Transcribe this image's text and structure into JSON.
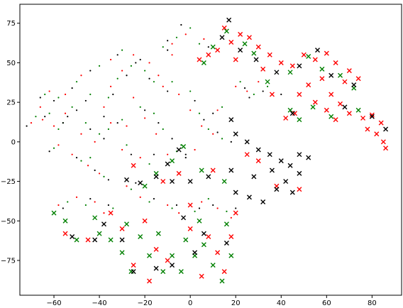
{
  "chart_data": {
    "type": "scatter",
    "title": "",
    "xlabel": "",
    "ylabel": "",
    "xlim": [
      -75,
      93
    ],
    "ylim": [
      -97,
      87
    ],
    "xticks": [
      -60,
      -40,
      -20,
      0,
      20,
      40,
      60,
      80
    ],
    "yticks": [
      -75,
      -50,
      -25,
      0,
      25,
      50,
      75
    ],
    "grid": false,
    "legend": "none",
    "colors": {
      "red": "#ff0000",
      "green": "#008000",
      "black": "#000000"
    },
    "marker_kinds": {
      "dot": "small dot markers (left/center region)",
      "cross": "x markers (right and lower clusters)"
    },
    "series": [
      {
        "color": "red",
        "marker": "cross",
        "points": [
          [
            15,
            72
          ],
          [
            22,
            68
          ],
          [
            18,
            63
          ],
          [
            26,
            66
          ],
          [
            30,
            60
          ],
          [
            35,
            55
          ],
          [
            12,
            58
          ],
          [
            8,
            55
          ],
          [
            4,
            52
          ],
          [
            20,
            52
          ],
          [
            32,
            46
          ],
          [
            40,
            50
          ],
          [
            45,
            48
          ],
          [
            50,
            55
          ],
          [
            55,
            52
          ],
          [
            60,
            56
          ],
          [
            64,
            50
          ],
          [
            70,
            45
          ],
          [
            74,
            40
          ],
          [
            68,
            38
          ],
          [
            58,
            40
          ],
          [
            52,
            36
          ],
          [
            48,
            30
          ],
          [
            55,
            25
          ],
          [
            60,
            20
          ],
          [
            64,
            14
          ],
          [
            70,
            18
          ],
          [
            76,
            15
          ],
          [
            80,
            17
          ],
          [
            84,
            12
          ],
          [
            82,
            5
          ],
          [
            85,
            0
          ],
          [
            86,
            -4
          ],
          [
            78,
            8
          ],
          [
            46,
            18
          ],
          [
            42,
            15
          ],
          [
            62,
            30
          ],
          [
            66,
            24
          ],
          [
            36,
            30
          ],
          [
            25,
            -8
          ],
          [
            30,
            -12
          ],
          [
            10,
            -18
          ],
          [
            -5,
            -20
          ],
          [
            -12,
            -25
          ],
          [
            -25,
            -15
          ],
          [
            38,
            -28
          ],
          [
            48,
            -30
          ],
          [
            -55,
            -58
          ],
          [
            -45,
            -62
          ],
          [
            -30,
            -55
          ],
          [
            -20,
            -50
          ],
          [
            -15,
            -68
          ],
          [
            -10,
            -75
          ],
          [
            -25,
            -78
          ],
          [
            -18,
            -88
          ],
          [
            0,
            -55
          ],
          [
            8,
            -60
          ],
          [
            12,
            -70
          ],
          [
            15,
            -82
          ],
          [
            5,
            -85
          ],
          [
            18,
            -60
          ],
          [
            -35,
            -45
          ],
          [
            0,
            -40
          ],
          [
            20,
            -45
          ]
        ]
      },
      {
        "color": "green",
        "marker": "cross",
        "points": [
          [
            10,
            60
          ],
          [
            16,
            70
          ],
          [
            24,
            62
          ],
          [
            6,
            50
          ],
          [
            28,
            56
          ],
          [
            44,
            44
          ],
          [
            52,
            54
          ],
          [
            58,
            46
          ],
          [
            66,
            42
          ],
          [
            72,
            34
          ],
          [
            54,
            22
          ],
          [
            62,
            16
          ],
          [
            74,
            20
          ],
          [
            44,
            20
          ],
          [
            48,
            14
          ],
          [
            34,
            38
          ],
          [
            -3,
            -3
          ],
          [
            -8,
            -12
          ],
          [
            -15,
            -20
          ],
          [
            -20,
            -28
          ],
          [
            5,
            -18
          ],
          [
            15,
            -25
          ],
          [
            -55,
            -50
          ],
          [
            -50,
            -62
          ],
          [
            -40,
            -58
          ],
          [
            -35,
            -62
          ],
          [
            -28,
            -52
          ],
          [
            -22,
            -60
          ],
          [
            -18,
            -72
          ],
          [
            -26,
            -82
          ],
          [
            -12,
            -82
          ],
          [
            -8,
            -72
          ],
          [
            -2,
            -62
          ],
          [
            4,
            -50
          ],
          [
            6,
            -65
          ],
          [
            10,
            -78
          ],
          [
            14,
            -88
          ],
          [
            18,
            -72
          ],
          [
            16,
            -52
          ],
          [
            -4,
            -82
          ],
          [
            -30,
            -70
          ],
          [
            2,
            -72
          ],
          [
            -14,
            -58
          ],
          [
            -42,
            -48
          ],
          [
            -60,
            -45
          ]
        ]
      },
      {
        "color": "black",
        "marker": "cross",
        "points": [
          [
            17,
            77
          ],
          [
            14,
            66
          ],
          [
            22,
            58
          ],
          [
            29,
            52
          ],
          [
            38,
            44
          ],
          [
            48,
            48
          ],
          [
            56,
            58
          ],
          [
            62,
            42
          ],
          [
            72,
            36
          ],
          [
            80,
            16
          ],
          [
            86,
            8
          ],
          [
            68,
            22
          ],
          [
            45,
            18
          ],
          [
            18,
            14
          ],
          [
            20,
            5
          ],
          [
            25,
            0
          ],
          [
            30,
            -5
          ],
          [
            35,
            -8
          ],
          [
            40,
            -12
          ],
          [
            44,
            -15
          ],
          [
            48,
            -20
          ],
          [
            42,
            -25
          ],
          [
            45,
            -32
          ],
          [
            38,
            -30
          ],
          [
            32,
            -38
          ],
          [
            26,
            -35
          ],
          [
            20,
            -32
          ],
          [
            28,
            -22
          ],
          [
            36,
            -18
          ],
          [
            18,
            -18
          ],
          [
            8,
            -22
          ],
          [
            0,
            -25
          ],
          [
            -8,
            -25
          ],
          [
            -15,
            -22
          ],
          [
            -22,
            -26
          ],
          [
            -28,
            -24
          ],
          [
            -5,
            -5
          ],
          [
            -10,
            -14
          ],
          [
            -25,
            -82
          ],
          [
            -15,
            -80
          ],
          [
            -8,
            -78
          ],
          [
            2,
            -70
          ],
          [
            6,
            -58
          ],
          [
            -30,
            -62
          ],
          [
            -42,
            -62
          ],
          [
            -52,
            -60
          ],
          [
            -38,
            -52
          ],
          [
            -3,
            -48
          ],
          [
            16,
            -64
          ],
          [
            48,
            -8
          ],
          [
            52,
            -10
          ]
        ]
      },
      {
        "color": "red",
        "marker": "dot",
        "points": [
          [
            -65,
            14
          ],
          [
            -60,
            10
          ],
          [
            -55,
            18
          ],
          [
            -48,
            5
          ],
          [
            -42,
            0
          ],
          [
            -38,
            22
          ],
          [
            -35,
            35
          ],
          [
            -30,
            45
          ],
          [
            -25,
            28
          ],
          [
            -20,
            15
          ],
          [
            -15,
            5
          ],
          [
            -10,
            -8
          ],
          [
            -22,
            -10
          ],
          [
            -30,
            -5
          ],
          [
            -45,
            -15
          ],
          [
            -40,
            -20
          ],
          [
            -12,
            35
          ],
          [
            -5,
            30
          ],
          [
            0,
            20
          ],
          [
            5,
            10
          ],
          [
            10,
            5
          ],
          [
            2,
            -5
          ],
          [
            -8,
            55
          ],
          [
            -18,
            50
          ],
          [
            -25,
            55
          ],
          [
            -35,
            52
          ],
          [
            -48,
            42
          ],
          [
            -55,
            30
          ],
          [
            -62,
            32
          ],
          [
            -66,
            22
          ],
          [
            -70,
            12
          ],
          [
            -58,
            -2
          ],
          [
            -52,
            -8
          ],
          [
            -28,
            -28
          ],
          [
            -22,
            -35
          ],
          [
            -10,
            -40
          ],
          [
            -5,
            -45
          ],
          [
            5,
            -38
          ],
          [
            12,
            -42
          ],
          [
            18,
            -48
          ],
          [
            -50,
            -35
          ],
          [
            -42,
            -38
          ],
          [
            -38,
            -45
          ],
          [
            -58,
            -40
          ],
          [
            20,
            35
          ],
          [
            25,
            32
          ],
          [
            30,
            38
          ],
          [
            12,
            20
          ],
          [
            -2,
            68
          ],
          [
            -8,
            62
          ],
          [
            6,
            65
          ],
          [
            -14,
            42
          ],
          [
            -28,
            10
          ],
          [
            -35,
            12
          ]
        ]
      },
      {
        "color": "green",
        "marker": "dot",
        "points": [
          [
            -62,
            18
          ],
          [
            -58,
            8
          ],
          [
            -52,
            22
          ],
          [
            -46,
            12
          ],
          [
            -40,
            5
          ],
          [
            -36,
            28
          ],
          [
            -32,
            40
          ],
          [
            -26,
            48
          ],
          [
            -22,
            22
          ],
          [
            -16,
            18
          ],
          [
            -12,
            8
          ],
          [
            -6,
            -6
          ],
          [
            -18,
            -14
          ],
          [
            -28,
            -2
          ],
          [
            -44,
            -10
          ],
          [
            -38,
            -22
          ],
          [
            -8,
            38
          ],
          [
            0,
            32
          ],
          [
            4,
            18
          ],
          [
            8,
            8
          ],
          [
            14,
            2
          ],
          [
            -4,
            -2
          ],
          [
            -12,
            60
          ],
          [
            -20,
            45
          ],
          [
            -30,
            58
          ],
          [
            -40,
            48
          ],
          [
            -50,
            38
          ],
          [
            -58,
            28
          ],
          [
            -64,
            30
          ],
          [
            -68,
            16
          ],
          [
            -60,
            -4
          ],
          [
            -48,
            -12
          ],
          [
            -26,
            -30
          ],
          [
            -18,
            -38
          ],
          [
            -8,
            -42
          ],
          [
            2,
            -44
          ],
          [
            8,
            -36
          ],
          [
            16,
            -44
          ],
          [
            -54,
            -38
          ],
          [
            -46,
            -40
          ],
          [
            -34,
            -42
          ],
          [
            22,
            38
          ],
          [
            28,
            30
          ],
          [
            34,
            35
          ],
          [
            14,
            22
          ],
          [
            0,
            72
          ],
          [
            -6,
            66
          ],
          [
            4,
            62
          ],
          [
            -16,
            38
          ],
          [
            -30,
            14
          ],
          [
            -36,
            8
          ],
          [
            -44,
            30
          ],
          [
            -56,
            12
          ]
        ]
      },
      {
        "color": "black",
        "marker": "dot",
        "points": [
          [
            -64,
            16
          ],
          [
            -56,
            12
          ],
          [
            -50,
            20
          ],
          [
            -44,
            8
          ],
          [
            -38,
            2
          ],
          [
            -34,
            30
          ],
          [
            -28,
            42
          ],
          [
            -24,
            50
          ],
          [
            -20,
            20
          ],
          [
            -14,
            12
          ],
          [
            -8,
            2
          ],
          [
            -2,
            -10
          ],
          [
            -16,
            -8
          ],
          [
            -26,
            -8
          ],
          [
            -42,
            -18
          ],
          [
            -36,
            -24
          ],
          [
            -10,
            32
          ],
          [
            2,
            26
          ],
          [
            6,
            14
          ],
          [
            12,
            6
          ],
          [
            18,
            0
          ],
          [
            -2,
            -8
          ],
          [
            -10,
            58
          ],
          [
            -22,
            52
          ],
          [
            -32,
            55
          ],
          [
            -44,
            45
          ],
          [
            -52,
            34
          ],
          [
            -60,
            26
          ],
          [
            -66,
            28
          ],
          [
            -72,
            10
          ],
          [
            -62,
            -6
          ],
          [
            -50,
            -10
          ],
          [
            -24,
            -26
          ],
          [
            -16,
            -36
          ],
          [
            -6,
            -40
          ],
          [
            4,
            -42
          ],
          [
            10,
            -40
          ],
          [
            20,
            -42
          ],
          [
            -56,
            -42
          ],
          [
            -44,
            -36
          ],
          [
            -36,
            -40
          ],
          [
            24,
            34
          ],
          [
            26,
            28
          ],
          [
            32,
            32
          ],
          [
            10,
            18
          ],
          [
            -4,
            74
          ],
          [
            -10,
            64
          ],
          [
            8,
            60
          ],
          [
            -18,
            40
          ],
          [
            -32,
            12
          ],
          [
            -38,
            16
          ],
          [
            -46,
            26
          ],
          [
            -54,
            16
          ],
          [
            40,
            30
          ]
        ]
      }
    ]
  }
}
